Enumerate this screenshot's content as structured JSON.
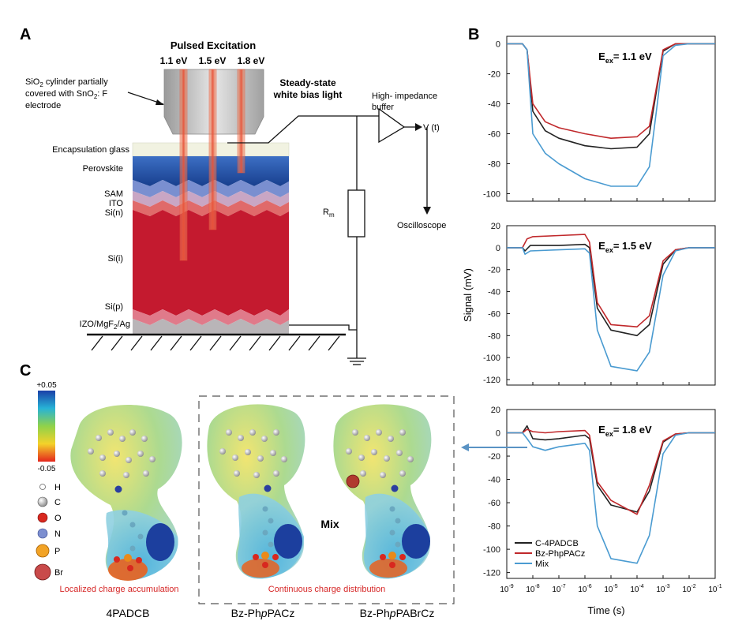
{
  "panel_labels": {
    "a": "A",
    "b": "B",
    "c": "C"
  },
  "setup": {
    "pulsed_excitation": "Pulsed Excitation",
    "excitation_energies": [
      "1.1 eV",
      "1.5 eV",
      "1.8 eV"
    ],
    "sio2_label": [
      "SiO",
      "2",
      " cylinder partially",
      "covered with SnO",
      "2",
      ": F",
      "electrode"
    ],
    "bias_light": [
      "Steady-state",
      "white bias light"
    ],
    "buffer": [
      "High- impedance",
      "buffer"
    ],
    "vt": "V (t)",
    "oscilloscope": "Oscilloscope",
    "resistor": [
      "R",
      "m"
    ],
    "layers": {
      "glass": "Encapsulation glass",
      "perovskite": "Perovskite",
      "sam": "SAM",
      "ito": "ITO",
      "si_n": "Si(n)",
      "si_i": "Si(i)",
      "si_p": "Si(p)",
      "bottom": [
        "IZO/MgF",
        "2",
        "/Ag"
      ]
    }
  },
  "colors": {
    "c4padcb": "#222222",
    "bzphppacz": "#c0282b",
    "mix": "#4a9bd1",
    "perovskite": "#1f4f99",
    "silicon": "#c41a2f",
    "beam": "#e8543a"
  },
  "molecules": {
    "scale_max": "+0.05",
    "scale_min": "-0.05",
    "atoms": [
      "H",
      "C",
      "O",
      "N",
      "P",
      "Br"
    ],
    "mix_label": "Mix",
    "captions": [
      "Localized charge accumulation",
      "Continuous charge distribution"
    ],
    "names": [
      [
        "4PADCB"
      ],
      [
        "Bz-Ph",
        "p",
        "PACz"
      ],
      [
        "Bz-Ph",
        "p",
        "PABrCz"
      ]
    ]
  },
  "chart_data": [
    {
      "type": "line",
      "title": "E_ex = 1.1 eV",
      "title_parts": [
        "E",
        "ex",
        "= 1.1 eV"
      ],
      "xscale": "log",
      "xlim": [
        1e-09,
        0.1
      ],
      "ylim": [
        -105,
        5
      ],
      "yticks": [
        0,
        -20,
        -40,
        -60,
        -80,
        -100
      ],
      "series": [
        {
          "name": "C-4PADCB",
          "x": [
            1e-09,
            4e-09,
            6e-09,
            1e-08,
            3e-08,
            1e-07,
            1e-06,
            1e-05,
            0.0001,
            0.0003,
            0.0006,
            0.001,
            0.003,
            0.01,
            0.1
          ],
          "y": [
            0,
            0,
            -4,
            -45,
            -58,
            -63,
            -68,
            -70,
            -69,
            -60,
            -28,
            -5,
            0,
            0,
            0
          ]
        },
        {
          "name": "Bz-PhpPACz",
          "x": [
            1e-09,
            4e-09,
            6e-09,
            1e-08,
            3e-08,
            1e-07,
            1e-06,
            1e-05,
            0.0001,
            0.0003,
            0.0006,
            0.001,
            0.003,
            0.01,
            0.1
          ],
          "y": [
            0,
            0,
            -4,
            -40,
            -52,
            -56,
            -60,
            -63,
            -62,
            -55,
            -26,
            -4,
            0,
            0,
            0
          ]
        },
        {
          "name": "Mix",
          "x": [
            1e-09,
            4e-09,
            6e-09,
            1e-08,
            3e-08,
            1e-07,
            1e-06,
            1e-05,
            0.0001,
            0.0003,
            0.0006,
            0.001,
            0.003,
            0.01,
            0.1
          ],
          "y": [
            0,
            0,
            -4,
            -60,
            -73,
            -80,
            -90,
            -95,
            -95,
            -82,
            -40,
            -8,
            -1,
            0,
            0
          ]
        }
      ]
    },
    {
      "type": "line",
      "title": "E_ex = 1.5 eV",
      "title_parts": [
        "E",
        "ex",
        "= 1.5 eV"
      ],
      "xscale": "log",
      "xlim": [
        1e-09,
        0.1
      ],
      "ylim": [
        -125,
        20
      ],
      "yticks": [
        20,
        0,
        -20,
        -40,
        -60,
        -80,
        -100,
        -120
      ],
      "ylabel": "Signal (mV)",
      "series": [
        {
          "name": "C-4PADCB",
          "x": [
            1e-09,
            4e-09,
            5e-09,
            8e-09,
            1e-07,
            1e-06,
            1.5e-06,
            3e-06,
            1e-05,
            0.0001,
            0.0003,
            0.001,
            0.003,
            0.01,
            0.1
          ],
          "y": [
            0,
            0,
            -3,
            2,
            2,
            3,
            0,
            -55,
            -75,
            -80,
            -70,
            -15,
            -2,
            0,
            0
          ]
        },
        {
          "name": "Bz-PhpPACz",
          "x": [
            1e-09,
            4e-09,
            6e-09,
            1e-08,
            1e-07,
            1e-06,
            1.5e-06,
            3e-06,
            1e-05,
            0.0001,
            0.0003,
            0.001,
            0.003,
            0.01,
            0.1
          ],
          "y": [
            0,
            0,
            8,
            10,
            11,
            12,
            5,
            -50,
            -70,
            -72,
            -62,
            -12,
            -2,
            0,
            0
          ]
        },
        {
          "name": "Mix",
          "x": [
            1e-09,
            4e-09,
            5e-09,
            8e-09,
            1e-07,
            1e-06,
            1.5e-06,
            3e-06,
            1e-05,
            0.0001,
            0.0003,
            0.001,
            0.003,
            0.01,
            0.1
          ],
          "y": [
            0,
            0,
            -6,
            -3,
            -2,
            -1,
            -5,
            -75,
            -108,
            -112,
            -95,
            -25,
            -3,
            0,
            0
          ]
        }
      ]
    },
    {
      "type": "line",
      "title": "E_ex = 1.8 eV",
      "title_parts": [
        "E",
        "ex",
        "= 1.8 eV"
      ],
      "xscale": "log",
      "xlim": [
        1e-09,
        0.1
      ],
      "ylim": [
        -125,
        20
      ],
      "yticks": [
        20,
        0,
        -20,
        -40,
        -60,
        -80,
        -100,
        -120
      ],
      "xlabel": "Time (s)",
      "xticks": [
        "10",
        "10",
        "10",
        "10",
        "10",
        "10",
        "10",
        "10",
        "10"
      ],
      "xtick_exponents": [
        "-9",
        "-8",
        "-7",
        "-6",
        "-5",
        "-4",
        "-3",
        "-2",
        "-1"
      ],
      "legend": [
        "C-4PADCB",
        "Bz-PhpPACz",
        "Mix"
      ],
      "series": [
        {
          "name": "C-4PADCB",
          "x": [
            1e-09,
            4e-09,
            6e-09,
            1e-08,
            3e-08,
            1e-07,
            1e-06,
            1.5e-06,
            3e-06,
            1e-05,
            0.0001,
            0.0003,
            0.001,
            0.003,
            0.01,
            0.1
          ],
          "y": [
            0,
            0,
            6,
            -5,
            -6,
            -5,
            -2,
            -5,
            -45,
            -62,
            -68,
            -50,
            -8,
            -1,
            0,
            0
          ]
        },
        {
          "name": "Bz-PhpPACz",
          "x": [
            1e-09,
            4e-09,
            6e-09,
            1e-08,
            3e-08,
            1e-07,
            1e-06,
            1.5e-06,
            3e-06,
            1e-05,
            0.0001,
            0.0003,
            0.001,
            0.003,
            0.01,
            0.1
          ],
          "y": [
            0,
            0,
            3,
            1,
            0,
            1,
            2,
            -2,
            -42,
            -58,
            -70,
            -45,
            -7,
            -1,
            0,
            0
          ]
        },
        {
          "name": "Mix",
          "x": [
            1e-09,
            4e-09,
            6e-09,
            1e-08,
            3e-08,
            1e-07,
            1e-06,
            1.5e-06,
            3e-06,
            1e-05,
            0.0001,
            0.0003,
            0.001,
            0.003,
            0.01,
            0.1
          ],
          "y": [
            0,
            0,
            -5,
            -12,
            -15,
            -12,
            -9,
            -15,
            -80,
            -108,
            -112,
            -88,
            -18,
            -2,
            0,
            0
          ]
        }
      ]
    }
  ]
}
